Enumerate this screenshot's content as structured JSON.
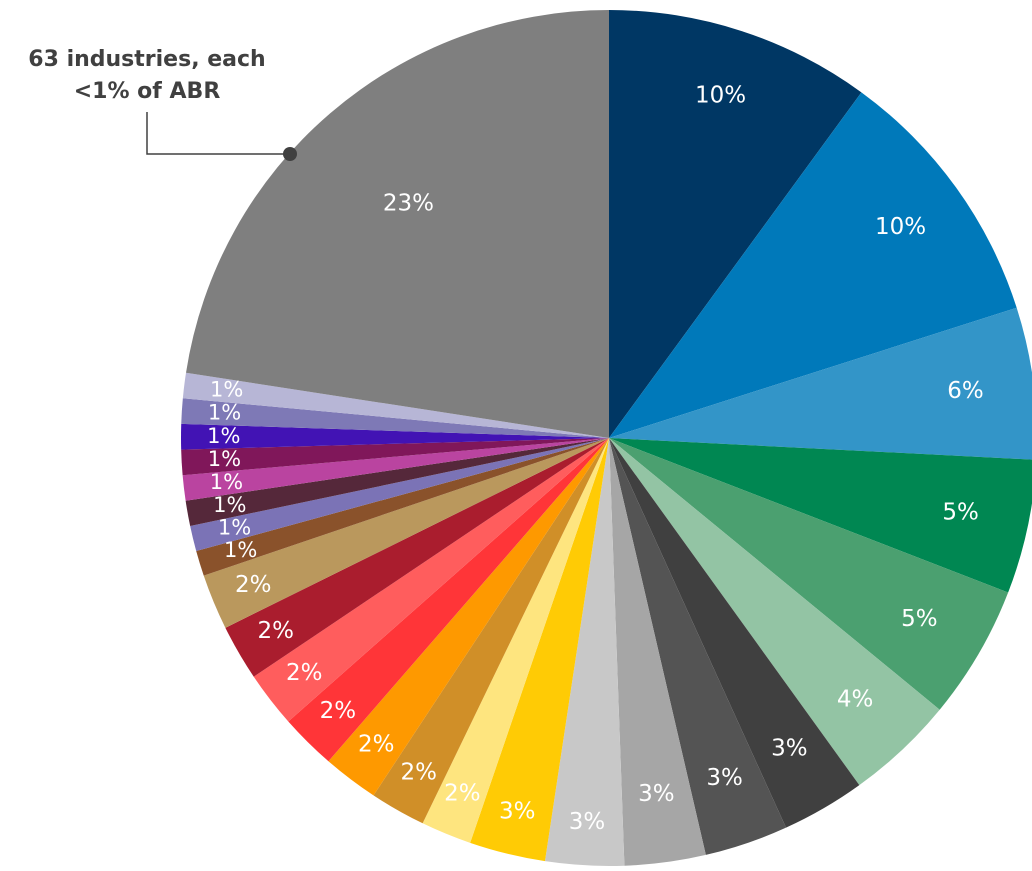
{
  "chart_data": {
    "type": "pie",
    "start_angle_deg": 0,
    "direction": "clockwise",
    "slices": [
      {
        "label": "10%",
        "value": 10.5,
        "color": "#003764"
      },
      {
        "label": "10%",
        "value": 10.5,
        "color": "#0079BA"
      },
      {
        "label": "6%",
        "value": 6.0,
        "color": "#3395C8"
      },
      {
        "label": "5%",
        "value": 5.3,
        "color": "#008752"
      },
      {
        "label": "5%",
        "value": 5.3,
        "color": "#4BA070"
      },
      {
        "label": "4%",
        "value": 4.3,
        "color": "#93C4A4"
      },
      {
        "label": "3%",
        "value": 3.3,
        "color": "#404040"
      },
      {
        "label": "3%",
        "value": 3.3,
        "color": "#545454"
      },
      {
        "label": "3%",
        "value": 3.2,
        "color": "#A6A6A6"
      },
      {
        "label": "3%",
        "value": 3.1,
        "color": "#C8C8C8"
      },
      {
        "label": "3%",
        "value": 3.0,
        "color": "#FFCB05"
      },
      {
        "label": "2%",
        "value": 2.0,
        "color": "#FEE57F"
      },
      {
        "label": "2%",
        "value": 2.2,
        "color": "#D08F28"
      },
      {
        "label": "2%",
        "value": 2.2,
        "color": "#FE9900"
      },
      {
        "label": "2%",
        "value": 2.2,
        "color": "#FF3538"
      },
      {
        "label": "2%",
        "value": 2.2,
        "color": "#FF5D5D"
      },
      {
        "label": "2%",
        "value": 2.2,
        "color": "#AA1D2E"
      },
      {
        "label": "2%",
        "value": 2.2,
        "color": "#BA985D"
      },
      {
        "label": "1%",
        "value": 1.0,
        "color": "#8A522B"
      },
      {
        "label": "1%",
        "value": 1.0,
        "color": "#7B73B6"
      },
      {
        "label": "1%",
        "value": 1.0,
        "color": "#55283A"
      },
      {
        "label": "1%",
        "value": 1.0,
        "color": "#BA44A0"
      },
      {
        "label": "1%",
        "value": 1.0,
        "color": "#80175A"
      },
      {
        "label": "1%",
        "value": 1.0,
        "color": "#4213B4"
      },
      {
        "label": "1%",
        "value": 1.0,
        "color": "#7E79B6"
      },
      {
        "label": "1%",
        "value": 1.0,
        "color": "#B7B6D6"
      },
      {
        "label": "23%",
        "value": 23.6,
        "color": "#7F7F7F"
      }
    ],
    "annotation": {
      "line1": "63 industries, each",
      "line2": "<1% of ABR",
      "target_slice": "23%",
      "color": "#404040"
    },
    "legend": "none"
  }
}
